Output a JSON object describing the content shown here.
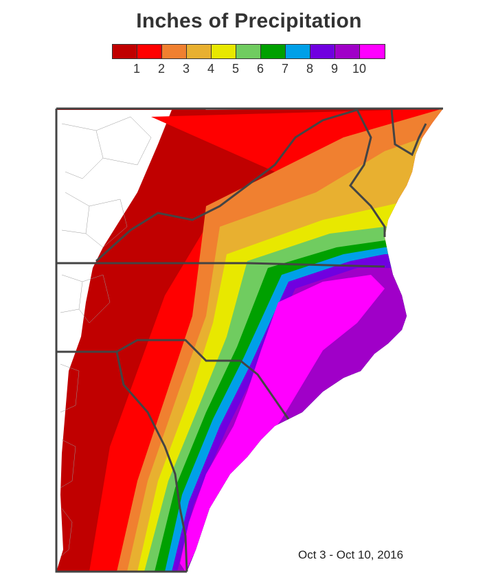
{
  "title": "Inches of Precipitation",
  "legend": {
    "colors": [
      "#c00000",
      "#ff0000",
      "#f08030",
      "#e8b030",
      "#e8e800",
      "#70cc60",
      "#00a000",
      "#00a0e8",
      "#7000e0",
      "#a000c8",
      "#ff00ff"
    ],
    "ticks": [
      "1",
      "2",
      "3",
      "4",
      "5",
      "6",
      "7",
      "8",
      "9",
      "10"
    ]
  },
  "date_range": "Oct 3 - Oct 10, 2016",
  "map_background": "#ffffff",
  "border_color": "#444444"
}
